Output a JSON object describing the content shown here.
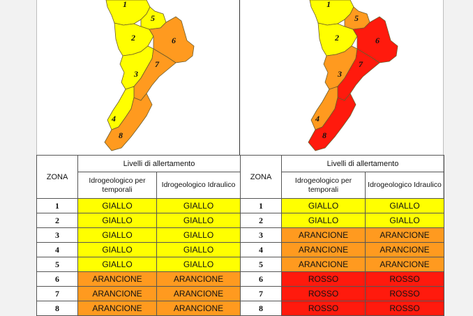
{
  "colors": {
    "giallo": "#ffff00",
    "arancione": "#ff9a1f",
    "rosso": "#ff1a0d"
  },
  "table_headers": {
    "zona": "ZONA",
    "livelli": "Livelli di allertamento",
    "col_temporali": "Idrogeologico per temporali",
    "col_idraulico": "Idrogeologico Idraulico"
  },
  "panels": [
    {
      "zone_map": [
        "yellow",
        "yellow",
        "yellow",
        "yellow",
        "yellow",
        "orange",
        "orange",
        "orange"
      ],
      "rows": [
        {
          "zona": "1",
          "temporali": "GIALLO",
          "idraulico": "GIALLO"
        },
        {
          "zona": "2",
          "temporali": "GIALLO",
          "idraulico": "GIALLO"
        },
        {
          "zona": "3",
          "temporali": "GIALLO",
          "idraulico": "GIALLO"
        },
        {
          "zona": "4",
          "temporali": "GIALLO",
          "idraulico": "GIALLO"
        },
        {
          "zona": "5",
          "temporali": "GIALLO",
          "idraulico": "GIALLO"
        },
        {
          "zona": "6",
          "temporali": "ARANCIONE",
          "idraulico": "ARANCIONE"
        },
        {
          "zona": "7",
          "temporali": "ARANCIONE",
          "idraulico": "ARANCIONE"
        },
        {
          "zona": "8",
          "temporali": "ARANCIONE",
          "idraulico": "ARANCIONE"
        }
      ]
    },
    {
      "zone_map": [
        "yellow",
        "yellow",
        "orange",
        "orange",
        "orange",
        "red",
        "red",
        "red"
      ],
      "rows": [
        {
          "zona": "1",
          "temporali": "GIALLO",
          "idraulico": "GIALLO"
        },
        {
          "zona": "2",
          "temporali": "GIALLO",
          "idraulico": "GIALLO"
        },
        {
          "zona": "3",
          "temporali": "ARANCIONE",
          "idraulico": "ARANCIONE"
        },
        {
          "zona": "4",
          "temporali": "ARANCIONE",
          "idraulico": "ARANCIONE"
        },
        {
          "zona": "5",
          "temporali": "ARANCIONE",
          "idraulico": "ARANCIONE"
        },
        {
          "zona": "6",
          "temporali": "ROSSO",
          "idraulico": "ROSSO"
        },
        {
          "zona": "7",
          "temporali": "ROSSO",
          "idraulico": "ROSSO"
        },
        {
          "zona": "8",
          "temporali": "ROSSO",
          "idraulico": "ROSSO"
        }
      ]
    }
  ]
}
